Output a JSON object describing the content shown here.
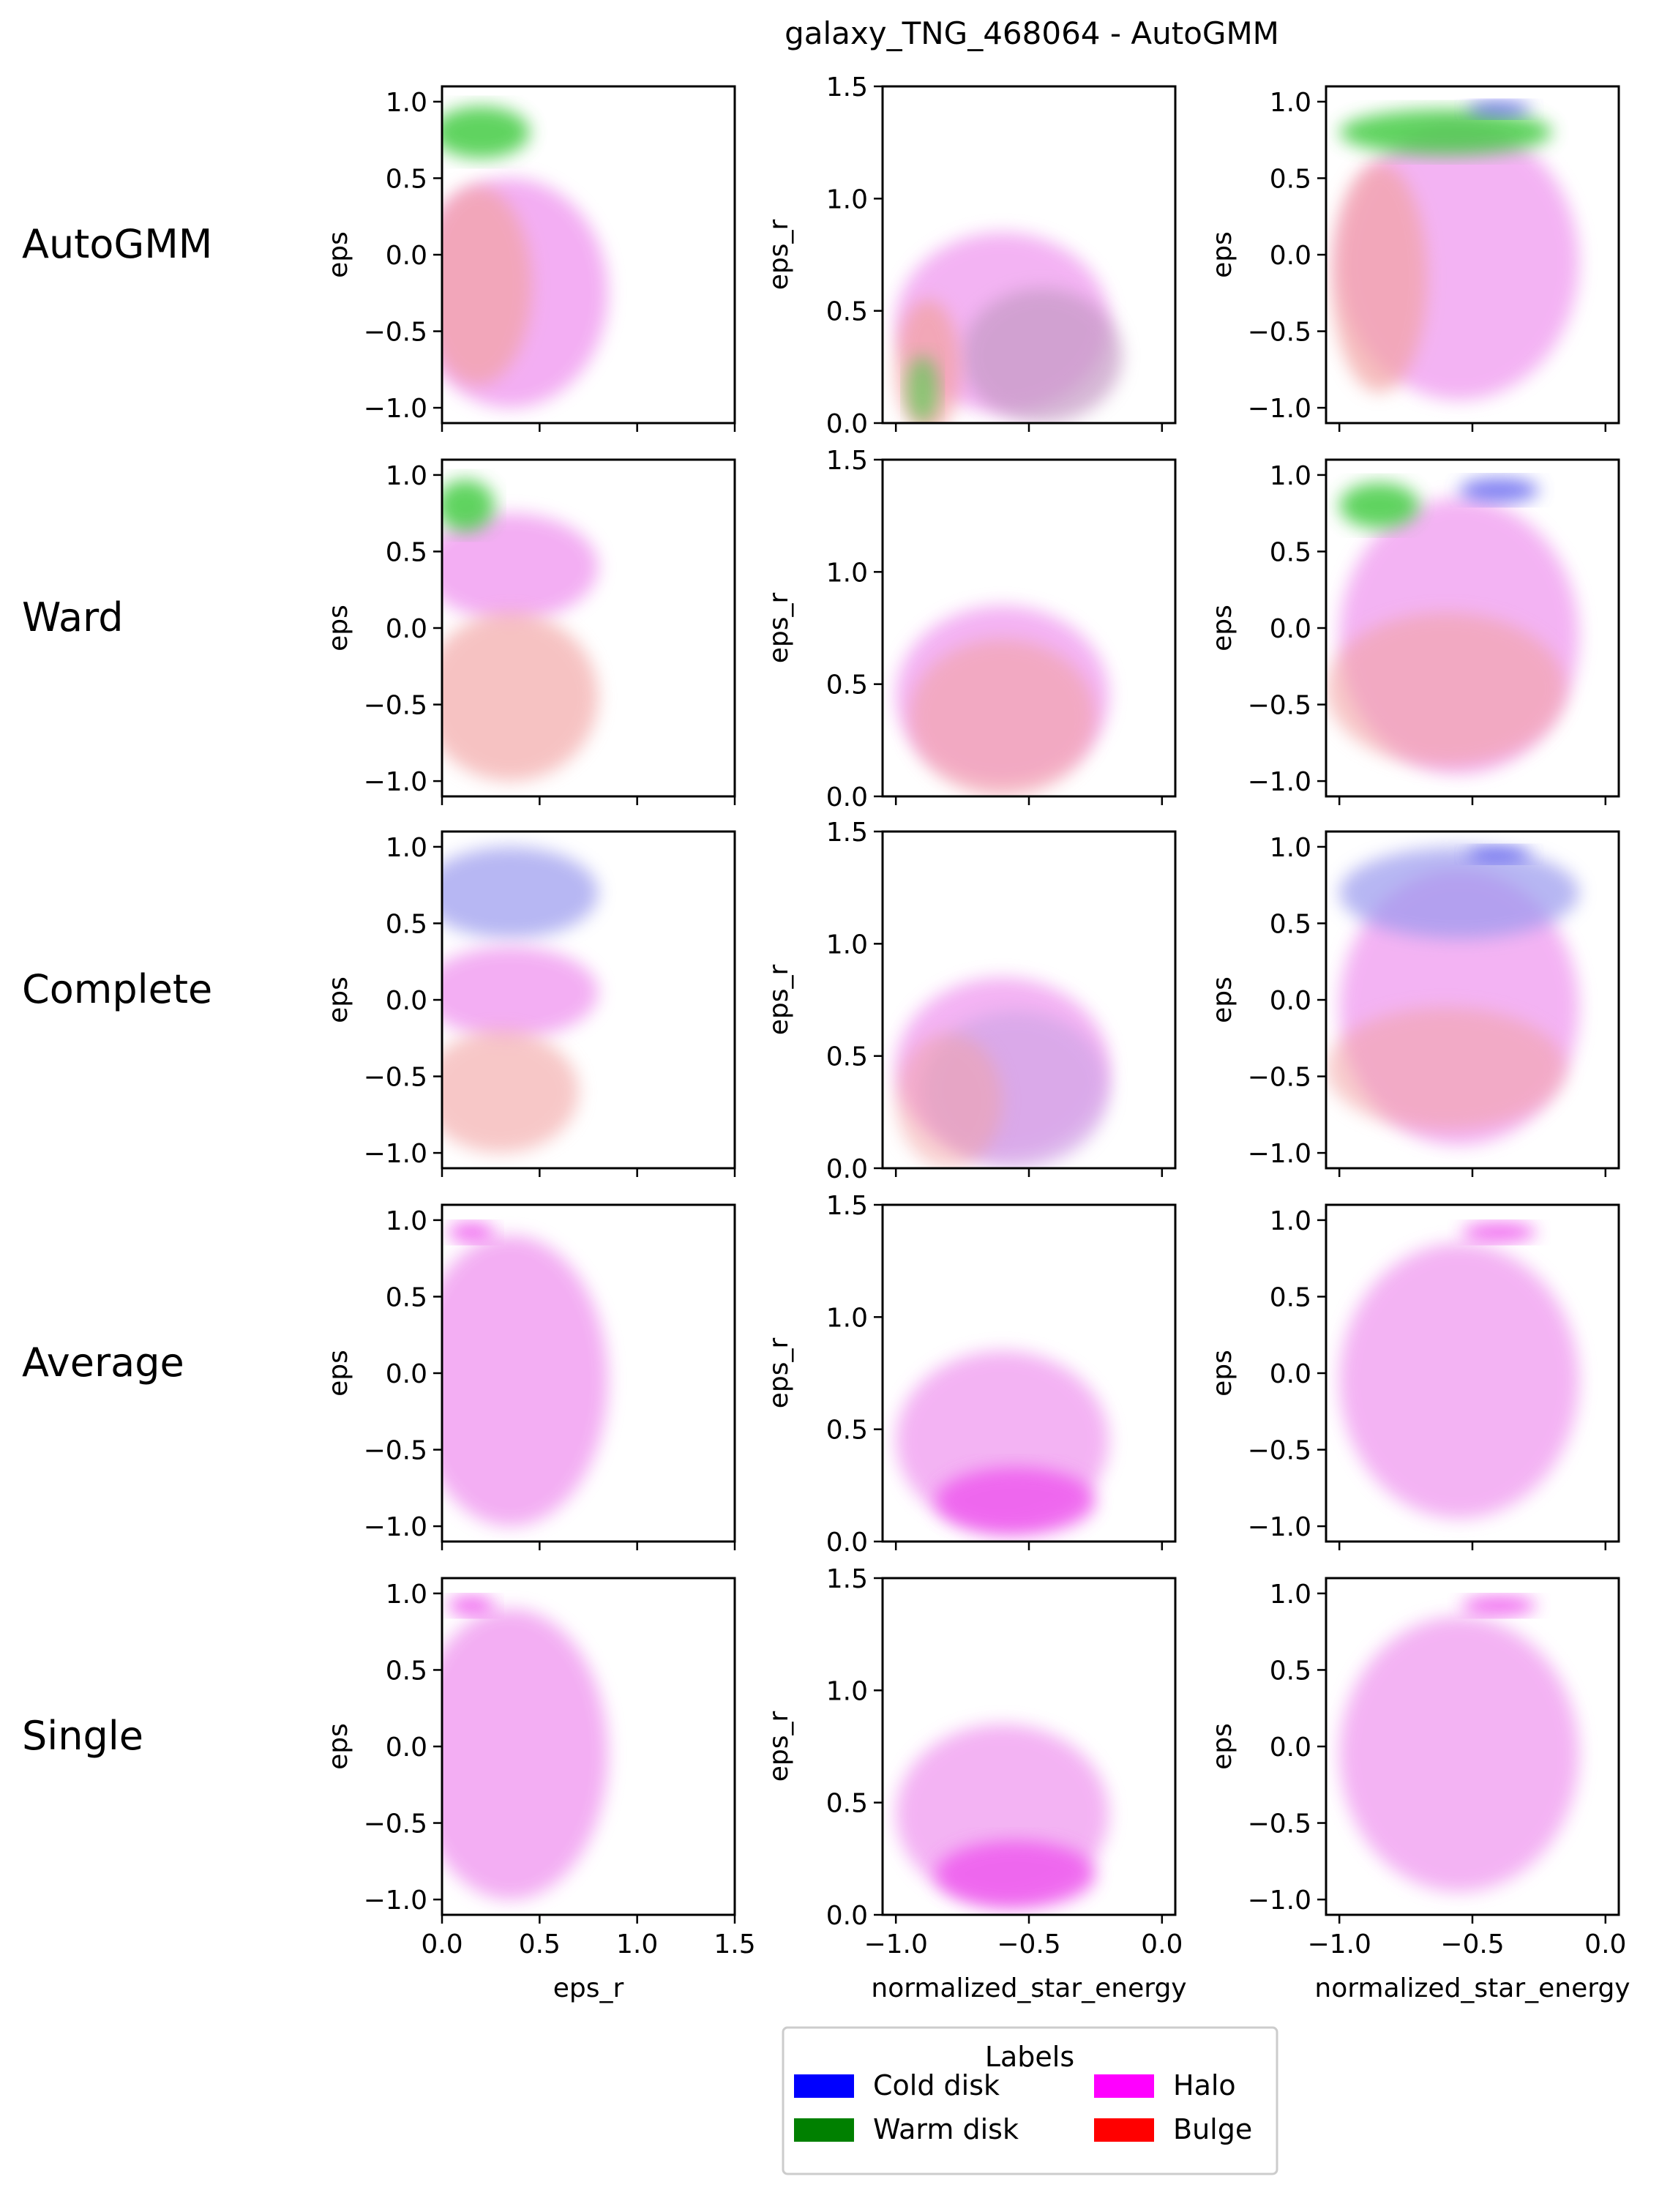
{
  "figure": {
    "title": "galaxy_TNG_468064 - AutoGMM",
    "row_labels": [
      "AutoGMM",
      "Ward",
      "Complete",
      "Average",
      "Single"
    ],
    "legend": {
      "title": "Labels",
      "entries": [
        {
          "label": "Cold disk",
          "color": "#0000ff"
        },
        {
          "label": "Warm disk",
          "color": "#008000"
        },
        {
          "label": "Halo",
          "color": "#ff00ff"
        },
        {
          "label": "Bulge",
          "color": "#ff0000"
        }
      ]
    }
  },
  "chart_data": [
    {
      "type": "heatmap",
      "panel_column": "eps vs eps_r",
      "xlabel": "eps_r",
      "ylabel": "eps",
      "xlim": [
        0.0,
        1.5
      ],
      "ylim": [
        -1.1,
        1.1
      ],
      "xticks": [
        "0.0",
        "0.5",
        "1.0",
        "1.5"
      ],
      "yticks": [
        "−1.0",
        "−0.5",
        "0.0",
        "0.5",
        "1.0"
      ]
    },
    {
      "type": "heatmap",
      "panel_column": "eps_r vs normalized_star_energy",
      "xlabel": "normalized_star_energy",
      "ylabel": "eps_r",
      "xlim": [
        -1.05,
        0.05
      ],
      "ylim": [
        0.0,
        1.5
      ],
      "xticks": [
        "−1.0",
        "−0.5",
        "0.0"
      ],
      "yticks": [
        "0.0",
        "0.5",
        "1.0",
        "1.5"
      ]
    },
    {
      "type": "heatmap",
      "panel_column": "eps vs normalized_star_energy",
      "xlabel": "normalized_star_energy",
      "ylabel": "eps",
      "xlim": [
        -1.05,
        0.05
      ],
      "ylim": [
        -1.1,
        1.1
      ],
      "xticks": [
        "−1.0",
        "−0.5",
        "0.0"
      ],
      "yticks": [
        "−1.0",
        "−0.5",
        "0.0",
        "0.5",
        "1.0"
      ]
    }
  ]
}
